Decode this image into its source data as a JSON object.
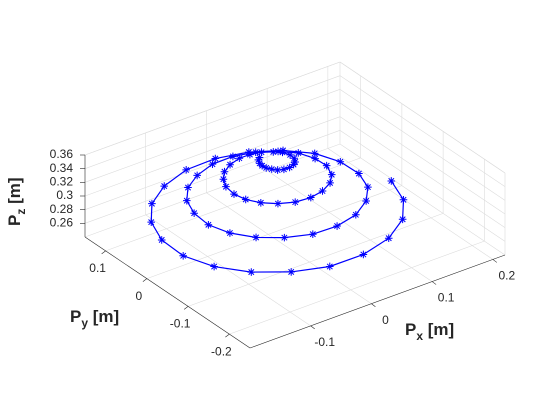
{
  "chart_data": {
    "type": "line3d",
    "xlabel": {
      "text": "P",
      "subscript": "x",
      "suffix": " [m]"
    },
    "ylabel": {
      "text": "P",
      "subscript": "y",
      "suffix": " [m]"
    },
    "zlabel": {
      "text": "P",
      "subscript": "z",
      "suffix": " [m]"
    },
    "xlim": [
      -0.2,
      0.22
    ],
    "ylim": [
      -0.25,
      0.15
    ],
    "zlim": [
      0.24,
      0.36
    ],
    "xticks": [
      -0.1,
      0,
      0.1,
      0.2
    ],
    "yticks": [
      -0.2,
      -0.1,
      0,
      0.1
    ],
    "zticks": [
      0.26,
      0.28,
      0.3,
      0.32,
      0.34,
      0.36
    ],
    "grid": true,
    "series": [
      {
        "color": "#0000ff",
        "marker": "*",
        "x": [
          0.189,
          0.171,
          0.137,
          0.091,
          0.037,
          -0.019,
          -0.071,
          -0.115,
          -0.147,
          -0.164,
          -0.164,
          -0.148,
          -0.119,
          -0.079,
          -0.032,
          0.016,
          0.061,
          0.099,
          0.126,
          0.139,
          0.139,
          0.126,
          0.1,
          0.066,
          0.027,
          -0.013,
          -0.051,
          -0.082,
          -0.104,
          -0.115,
          -0.114,
          -0.103,
          -0.082,
          -0.054,
          -0.022,
          0.011,
          0.041,
          0.065,
          0.082,
          0.09,
          0.09,
          0.08,
          0.063,
          0.041,
          0.017,
          -0.008,
          -0.031,
          -0.049,
          -0.061,
          -0.066,
          -0.065,
          -0.057,
          -0.045,
          -0.029,
          -0.011,
          0.005,
          0.02,
          0.032,
          0.039,
          0.042,
          0.04,
          0.034,
          0.026,
          0.016,
          0.006,
          -0.003,
          -0.01,
          -0.015,
          -0.017,
          -0.017,
          -0.015,
          -0.011
        ],
        "y": [
          -0.02,
          -0.076,
          -0.124,
          -0.158,
          -0.176,
          -0.177,
          -0.16,
          -0.128,
          -0.085,
          -0.035,
          0.017,
          0.066,
          0.107,
          0.136,
          0.152,
          0.152,
          0.137,
          0.11,
          0.073,
          0.03,
          -0.015,
          -0.056,
          -0.09,
          -0.115,
          -0.127,
          -0.127,
          -0.114,
          -0.091,
          -0.06,
          -0.024,
          0.012,
          0.046,
          0.074,
          0.093,
          0.103,
          0.102,
          0.091,
          0.072,
          0.048,
          0.019,
          -0.009,
          -0.036,
          -0.057,
          -0.071,
          -0.078,
          -0.077,
          -0.069,
          -0.054,
          -0.035,
          -0.014,
          0.007,
          0.025,
          0.04,
          0.05,
          0.054,
          0.052,
          0.046,
          0.035,
          0.023,
          0.009,
          -0.004,
          -0.015,
          -0.023,
          -0.028,
          -0.029,
          -0.027,
          -0.023,
          -0.017,
          -0.01,
          -0.004,
          0.002,
          0.005
        ],
        "z": [
          0.265,
          0.266,
          0.268,
          0.269,
          0.27,
          0.271,
          0.273,
          0.274,
          0.275,
          0.276,
          0.278,
          0.279,
          0.28,
          0.281,
          0.283,
          0.284,
          0.285,
          0.286,
          0.288,
          0.289,
          0.29,
          0.291,
          0.293,
          0.294,
          0.295,
          0.296,
          0.298,
          0.299,
          0.3,
          0.301,
          0.303,
          0.304,
          0.305,
          0.306,
          0.308,
          0.309,
          0.31,
          0.311,
          0.313,
          0.314,
          0.315,
          0.316,
          0.318,
          0.319,
          0.32,
          0.321,
          0.323,
          0.324,
          0.325,
          0.326,
          0.328,
          0.329,
          0.33,
          0.331,
          0.333,
          0.334,
          0.335,
          0.336,
          0.338,
          0.339,
          0.34,
          0.341,
          0.343,
          0.344,
          0.345,
          0.346,
          0.348,
          0.349,
          0.35,
          0.351,
          0.353,
          0.354
        ]
      }
    ]
  }
}
